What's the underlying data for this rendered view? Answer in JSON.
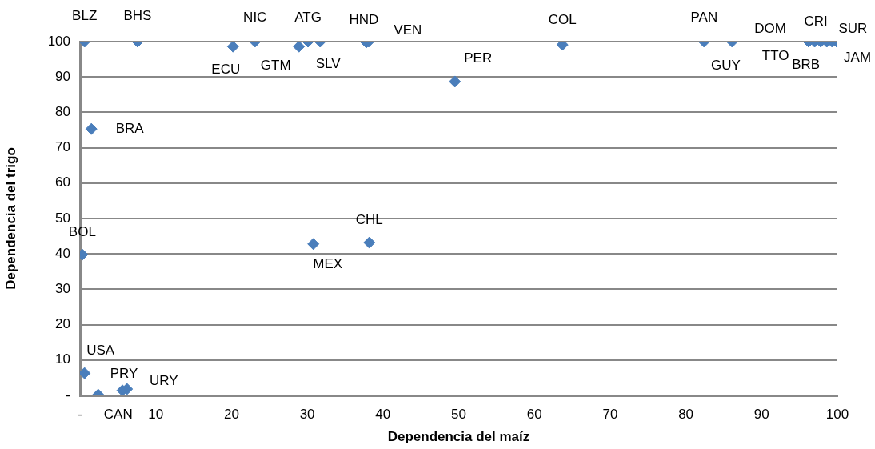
{
  "chart_data": {
    "type": "scatter",
    "xlabel": "Dependencia del maíz",
    "ylabel": "Dependencia del trigo",
    "xlim": [
      0,
      100
    ],
    "ylim": [
      0,
      100
    ],
    "xticks": [
      {
        "value": 0,
        "label": "-"
      },
      10,
      20,
      30,
      40,
      50,
      60,
      70,
      80,
      90,
      100
    ],
    "yticks": [
      {
        "value": 0,
        "label": "-"
      },
      10,
      20,
      30,
      40,
      50,
      60,
      70,
      80,
      90,
      100
    ],
    "grid": "y",
    "marker": "diamond",
    "series": [
      {
        "color": "#4a7ebb",
        "x": [
          0.6,
          7.6,
          20.2,
          23.1,
          28.9,
          30.1,
          31.7,
          37.8,
          38.1,
          63.7,
          49.5,
          82.4,
          86.1,
          96.2,
          97.0,
          97.8,
          98.6,
          99.3,
          99.9,
          1.5,
          0.3,
          30.8,
          38.2,
          0.6,
          2.4,
          5.6,
          6.2
        ],
        "values": [
          100,
          100,
          98.6,
          100,
          98.6,
          100,
          100,
          99.8,
          100,
          99.1,
          88.7,
          100,
          100,
          100,
          100,
          100,
          100,
          100,
          100,
          75.3,
          39.8,
          42.8,
          43.2,
          6.3,
          0.2,
          1.4,
          1.8
        ],
        "value_labels": [
          "BLZ",
          "BHS",
          "ECU",
          "NIC",
          "GTM",
          "ATG",
          "SLV",
          "HND",
          "VEN",
          "COL",
          "PER",
          "PAN",
          "GUY",
          "DOM",
          "TTO",
          "CRI",
          "BRB",
          "SUR",
          "JAM",
          "BRA",
          "BOL",
          "MEX",
          "CHL",
          "USA",
          "CAN",
          "PRY",
          "URY"
        ]
      }
    ]
  }
}
